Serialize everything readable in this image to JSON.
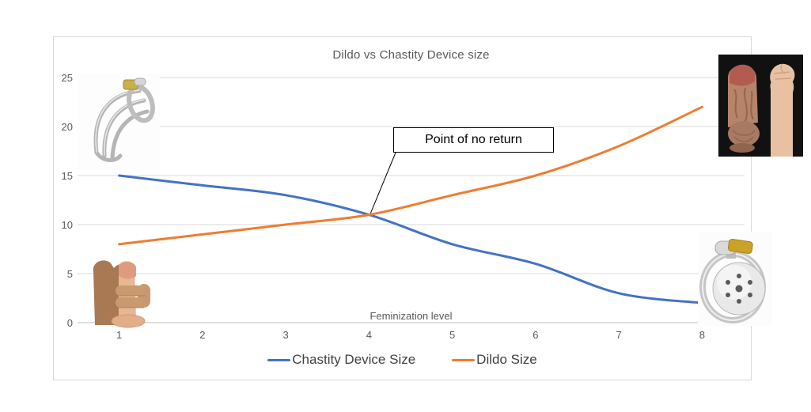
{
  "page": {
    "background": "#ffffff"
  },
  "chart_data": {
    "type": "line",
    "title": "Dildo vs Chastity Device size",
    "xlabel": "Feminization level",
    "ylabel": "",
    "x": [
      1,
      2,
      3,
      4,
      5,
      6,
      7,
      8
    ],
    "ylim": [
      0,
      25
    ],
    "yticks": [
      0,
      5,
      10,
      15,
      20,
      25
    ],
    "grid": true,
    "smooth_lines": true,
    "legend_position": "bottom",
    "series": [
      {
        "name": "Chastity Device Size",
        "color": "#4472C4",
        "values": [
          15,
          14,
          13,
          11,
          8,
          6,
          3,
          2
        ]
      },
      {
        "name": "Dildo Size",
        "color": "#ED7D31",
        "values": [
          8,
          9,
          10,
          11,
          13,
          15,
          18,
          22
        ]
      }
    ],
    "annotation": {
      "text": "Point of no return",
      "attach_x": 4,
      "attach_y": 11
    }
  },
  "images": [
    {
      "name": "chastity-cage-photo",
      "position": "top-left",
      "description": "wire chastity cage with brass lock"
    },
    {
      "name": "hand-holding-small-dildo-photo",
      "position": "bottom-left",
      "description": "hand holding a small dildo"
    },
    {
      "name": "large-dildo-vs-fist-photo",
      "position": "top-right",
      "description": "large dildo beside forearm and fist on black background"
    },
    {
      "name": "flat-chastity-device-photo",
      "position": "bottom-right",
      "description": "flat round steel chastity device with holes"
    }
  ],
  "colors": {
    "grid": "#D9D9D9",
    "axis": "#BFBFBF",
    "tick_text": "#595959",
    "title_text": "#595959",
    "legend_text": "#404040",
    "annotation_border": "#000000",
    "chart_border": "#D9D9D9",
    "leader_line": "#000000"
  }
}
